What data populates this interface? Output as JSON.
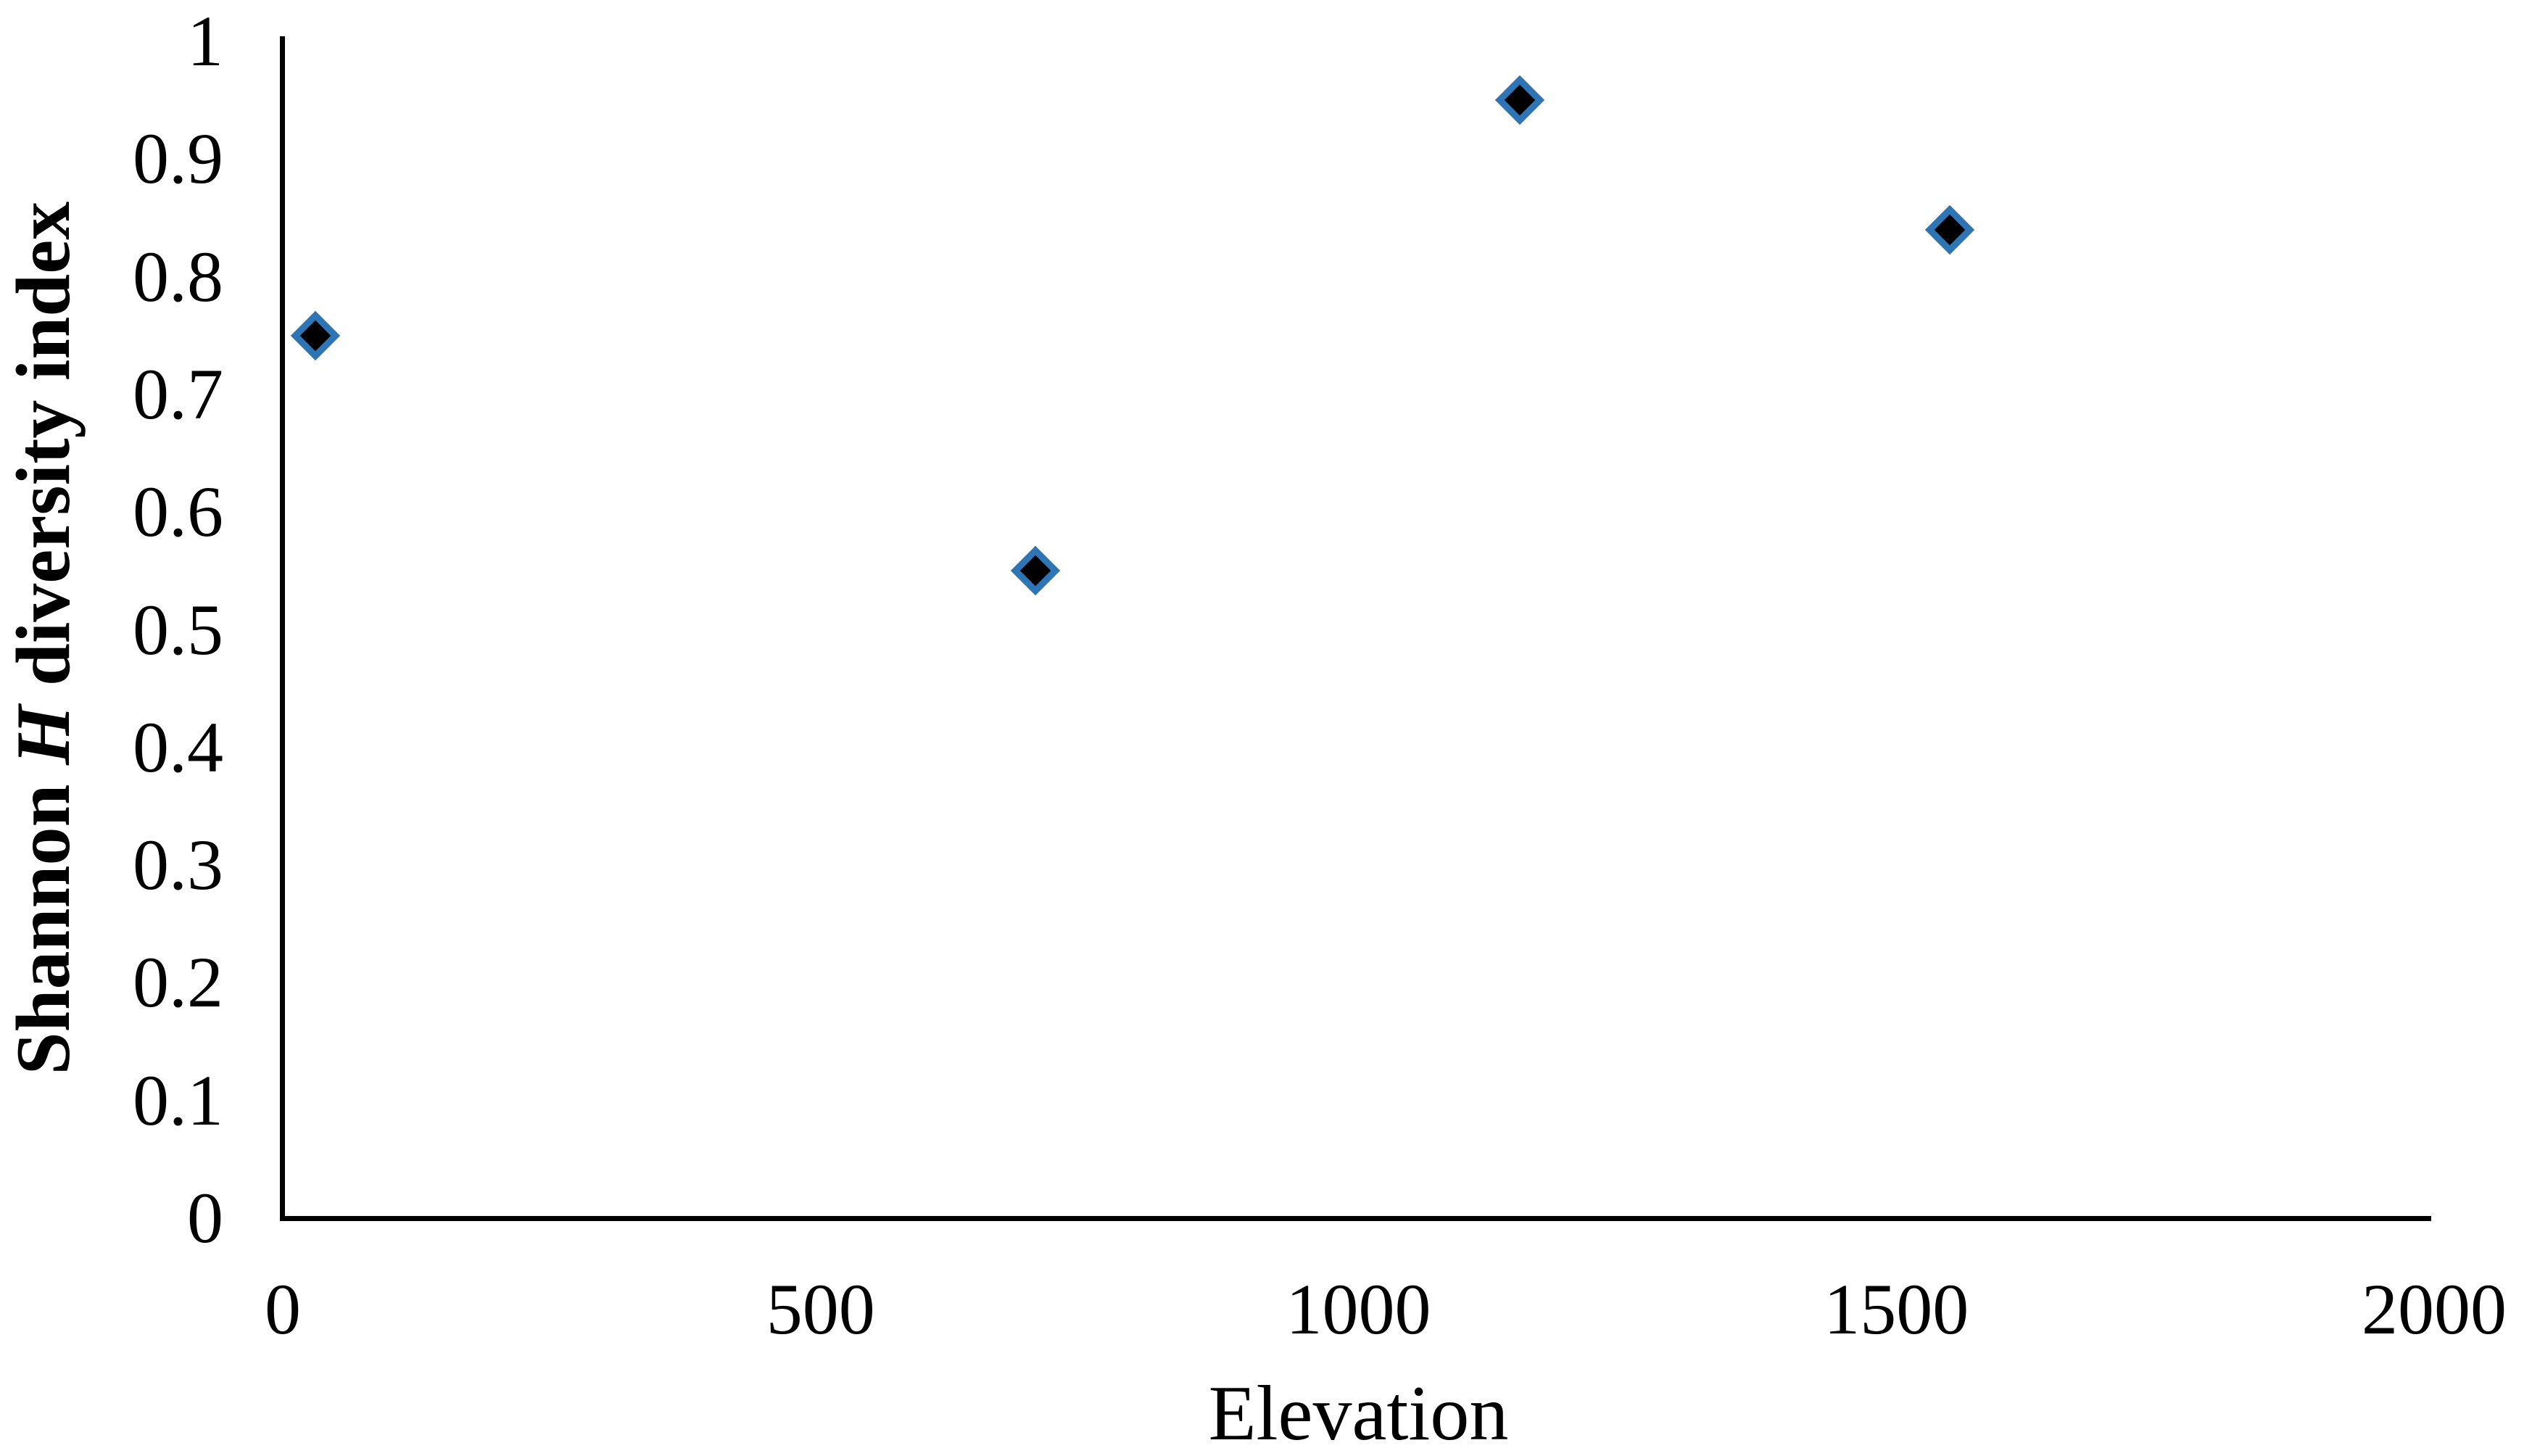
{
  "figure": {
    "background": "#ffffff",
    "axis_color": "#000000",
    "marker_fill_color": "#000000",
    "marker_border_color": "#2e75b6"
  },
  "y_axis": {
    "title_prefix": "Shannon ",
    "title_italic": "H",
    "title_suffix": " diversity index",
    "tick_labels": [
      "0",
      "0.1",
      "0.2",
      "0.3",
      "0.4",
      "0.5",
      "0.6",
      "0.7",
      "0.8",
      "0.9",
      "1"
    ],
    "tick_values": [
      0,
      0.1,
      0.2,
      0.3,
      0.4,
      0.5,
      0.6,
      0.7,
      0.8,
      0.9,
      1
    ]
  },
  "x_axis": {
    "title": "Elevation",
    "tick_labels": [
      "0",
      "500",
      "1000",
      "1500",
      "2000"
    ],
    "tick_values": [
      0,
      500,
      1000,
      1500,
      2000
    ]
  },
  "chart_data": {
    "type": "scatter",
    "title": "",
    "xlabel": "Elevation",
    "ylabel": "Shannon H diversity index",
    "x": [
      30,
      700,
      1150,
      1550
    ],
    "y": [
      0.75,
      0.55,
      0.95,
      0.84
    ],
    "xlim": [
      0,
      2000
    ],
    "ylim": [
      0,
      1
    ],
    "grid": false,
    "legend": false,
    "marker": "diamond-black-with-blue-outline"
  }
}
